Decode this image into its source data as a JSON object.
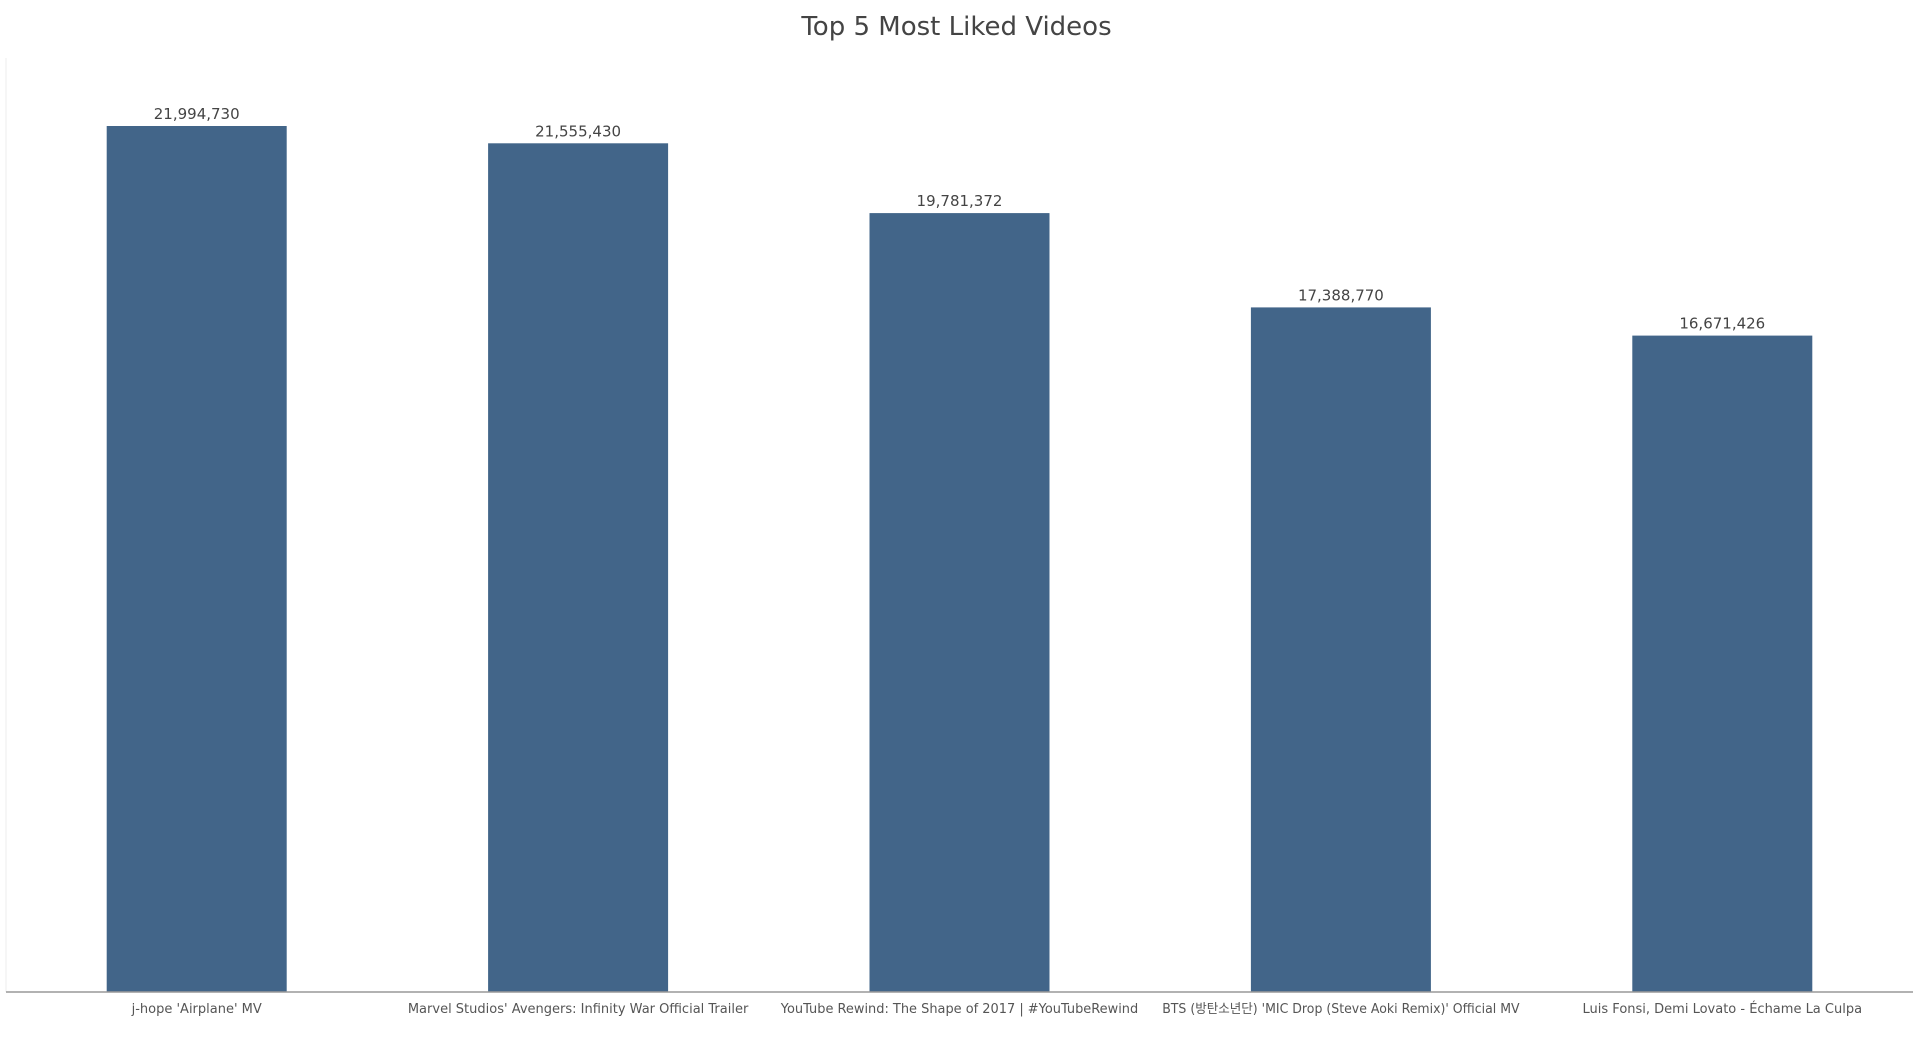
{
  "chart_data": {
    "type": "bar",
    "title": "Top 5 Most Liked Videos",
    "xlabel": "",
    "ylabel": "",
    "categories": [
      "j-hope 'Airplane' MV",
      "Marvel Studios' Avengers: Infinity War Official Trailer",
      "YouTube Rewind: The Shape of 2017 | #YouTubeRewind",
      "BTS (방탄소년단) 'MIC Drop (Steve Aoki Remix)' Official MV",
      "Luis Fonsi, Demi Lovato - Échame La Culpa"
    ],
    "values": [
      21994730,
      21555430,
      19781372,
      17388770,
      16671426
    ],
    "value_labels": [
      "21,994,730",
      "21,555,430",
      "19,781,372",
      "17,388,770",
      "16,671,426"
    ],
    "ylim": [
      0,
      23000000
    ],
    "grid": false,
    "bar_color": "#426589"
  }
}
